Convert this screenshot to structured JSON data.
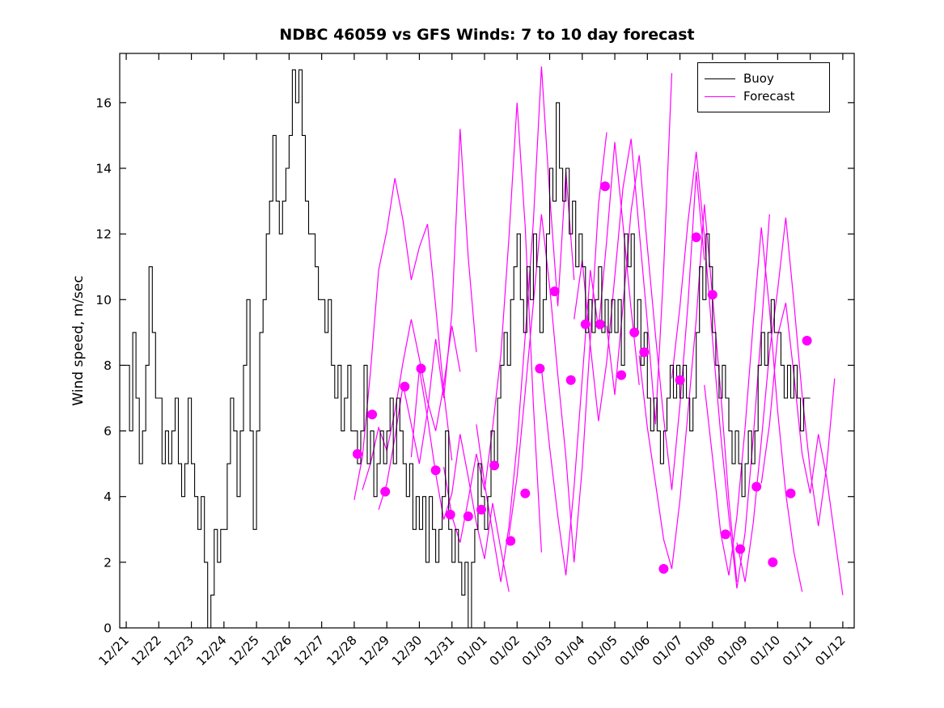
{
  "title": "NDBC 46059 vs GFS Winds: 7 to 10 day forecast",
  "legend": [
    {
      "label": "Buoy",
      "color": "#000000"
    },
    {
      "label": "Forecast",
      "color": "#ff00ff"
    }
  ],
  "colors": {
    "buoy": "#000000",
    "forecast": "#ff00ff",
    "background": "#ffffff",
    "axis": "#000000"
  },
  "chart_data": {
    "type": "line",
    "title": "NDBC 46059 vs GFS Winds: 7 to 10 day forecast",
    "xlabel": "",
    "ylabel": "Wind speed, m/sec",
    "xlim": [
      -0.2,
      22.35
    ],
    "ylim": [
      0,
      17.5
    ],
    "yticks": [
      0,
      2,
      4,
      6,
      8,
      10,
      12,
      14,
      16
    ],
    "x_tick_positions": [
      0,
      1,
      2,
      3,
      4,
      5,
      6,
      7,
      8,
      9,
      10,
      11,
      12,
      13,
      14,
      15,
      16,
      17,
      18,
      19,
      20,
      21,
      22
    ],
    "x_tick_labels": [
      "12/21",
      "12/22",
      "12/23",
      "12/24",
      "12/25",
      "12/26",
      "12/27",
      "12/28",
      "12/29",
      "12/30",
      "12/31",
      "01/01",
      "01/02",
      "01/03",
      "01/04",
      "01/05",
      "01/06",
      "01/07",
      "01/08",
      "01/09",
      "01/10",
      "01/11",
      "01/12"
    ],
    "grid": false,
    "legend_position": "top-right",
    "buoy": {
      "name": "Buoy",
      "t_start": 0,
      "dt": 0.1,
      "values": [
        8,
        6,
        9,
        7,
        5,
        6,
        8,
        11,
        9,
        7,
        7,
        5,
        6,
        5,
        6,
        7,
        5,
        4,
        5,
        7,
        5,
        4,
        3,
        4,
        2,
        0,
        1,
        3,
        2,
        3,
        3,
        5,
        7,
        6,
        4,
        6,
        8,
        10,
        6,
        3,
        6,
        9,
        10,
        12,
        13,
        15,
        13,
        12,
        13,
        14,
        15,
        17,
        16,
        17,
        15,
        13,
        12,
        12,
        11,
        10,
        10,
        9,
        10,
        8,
        7,
        8,
        6,
        7,
        8,
        6,
        6,
        5,
        6,
        8,
        5,
        6,
        4,
        5,
        6,
        5,
        6,
        7,
        5,
        7,
        6,
        5,
        4,
        5,
        3,
        4,
        3,
        4,
        2,
        4,
        3,
        2,
        3,
        4,
        6,
        3,
        2,
        3,
        2,
        1,
        2,
        0,
        2,
        3,
        5,
        4,
        3,
        4,
        6,
        5,
        7,
        8,
        9,
        8,
        10,
        11,
        12,
        10,
        9,
        11,
        10,
        12,
        11,
        9,
        10,
        12,
        14,
        13,
        16,
        14,
        13,
        14,
        12,
        13,
        11,
        12,
        11,
        9,
        10,
        9,
        10,
        11,
        9,
        10,
        9,
        10,
        9,
        10,
        8,
        12,
        11,
        12,
        9,
        10,
        8,
        9,
        7,
        6,
        7,
        6,
        5,
        6,
        7,
        8,
        7,
        8,
        7,
        8,
        7,
        6,
        7,
        9,
        11,
        10,
        12,
        11,
        9,
        8,
        7,
        8,
        7,
        6,
        5,
        6,
        5,
        4,
        5,
        6,
        5,
        6,
        8,
        9,
        8,
        9,
        10,
        9,
        9,
        8,
        7,
        8,
        7,
        8,
        7,
        6,
        7,
        7,
        7
      ]
    },
    "forecast_lines": [
      {
        "x0": 7.0,
        "dx": 0.25,
        "y": [
          3.9,
          5.2,
          7.8,
          10.9,
          12.1,
          13.7,
          12.4,
          10.6,
          11.6,
          12.3,
          9.8,
          7.2,
          5.1
        ]
      },
      {
        "x0": 7.25,
        "dx": 0.25,
        "y": [
          4.2,
          5.0,
          6.1,
          5.4,
          6.6,
          8.1,
          9.4,
          8.2,
          6.9,
          6.0,
          7.4,
          9.2,
          7.8
        ]
      },
      {
        "x0": 7.75,
        "dx": 0.25,
        "y": [
          3.6,
          4.4,
          5.8,
          7.4,
          6.2,
          5.0,
          6.6,
          8.8,
          7.0,
          9.6,
          15.2,
          11.3,
          8.4
        ]
      },
      {
        "x0": 8.75,
        "dx": 0.25,
        "y": [
          5.2,
          7.9,
          6.4,
          4.7,
          3.3,
          4.1,
          5.9,
          4.6,
          3.2,
          2.1,
          3.8,
          2.4,
          1.1
        ]
      },
      {
        "x0": 9.75,
        "dx": 0.25,
        "y": [
          4.9,
          3.4,
          2.6,
          3.9,
          5.3,
          4.2,
          6.1,
          8.3,
          11.9,
          16.0,
          12.2,
          6.8,
          2.3
        ]
      },
      {
        "x0": 10.75,
        "dx": 0.25,
        "y": [
          6.2,
          4.4,
          2.9,
          1.4,
          3.1,
          5.6,
          8.9,
          12.4,
          17.1,
          13.2,
          9.8,
          13.9,
          10.6
        ]
      },
      {
        "x0": 11.75,
        "dx": 0.25,
        "y": [
          2.8,
          4.6,
          7.2,
          9.9,
          12.6,
          10.4,
          7.7,
          5.2,
          2.0,
          4.9,
          8.8,
          12.9,
          15.1
        ]
      },
      {
        "x0": 12.75,
        "dx": 0.25,
        "y": [
          7.9,
          5.5,
          3.4,
          1.6,
          4.3,
          7.6,
          10.9,
          9.1,
          11.8,
          14.8,
          12.3,
          9.7,
          7.4
        ]
      },
      {
        "x0": 13.75,
        "dx": 0.25,
        "y": [
          9.4,
          11.2,
          8.6,
          6.3,
          8.1,
          10.7,
          13.4,
          14.9,
          12.1,
          9.3,
          6.2,
          10.9,
          16.9
        ]
      },
      {
        "x0": 14.75,
        "dx": 0.25,
        "y": [
          9.2,
          7.1,
          9.8,
          12.7,
          14.4,
          11.6,
          8.9,
          6.4,
          4.2,
          6.8,
          9.9,
          13.9,
          11.2
        ]
      },
      {
        "x0": 15.75,
        "dx": 0.25,
        "y": [
          8.3,
          6.1,
          4.4,
          2.7,
          1.8,
          3.9,
          6.6,
          9.4,
          12.9,
          10.1,
          7.2,
          3.9,
          1.4
        ]
      },
      {
        "x0": 16.75,
        "dx": 0.25,
        "y": [
          7.6,
          9.8,
          12.4,
          14.5,
          11.9,
          8.8,
          5.9,
          3.4,
          1.2,
          2.9,
          5.8,
          9.1,
          12.6
        ]
      },
      {
        "x0": 17.75,
        "dx": 0.25,
        "y": [
          7.4,
          5.2,
          2.9,
          1.6,
          3.4,
          6.1,
          9.3,
          12.2,
          9.7,
          6.6,
          4.1,
          2.3,
          1.1
        ]
      },
      {
        "x0": 18.75,
        "dx": 0.25,
        "y": [
          2.6,
          1.4,
          3.2,
          5.7,
          8.4,
          10.3,
          12.5,
          9.9,
          7.1,
          4.8,
          3.1,
          4.9,
          7.6
        ]
      },
      {
        "x0": 19.5,
        "dx": 0.25,
        "y": [
          4.4,
          6.2,
          8.9,
          9.9,
          7.7,
          5.3,
          4.1,
          5.9,
          4.6,
          2.8,
          1.0
        ]
      }
    ],
    "forecast_markers": {
      "x": [
        7.1,
        7.55,
        7.95,
        8.55,
        9.05,
        9.5,
        9.95,
        10.5,
        10.9,
        11.3,
        11.8,
        12.25,
        12.7,
        13.15,
        13.65,
        14.1,
        14.55,
        14.7,
        15.2,
        15.6,
        15.9,
        16.5,
        17.0,
        17.5,
        18.0,
        18.4,
        18.85,
        19.35,
        19.85,
        20.4,
        20.9
      ],
      "y": [
        5.3,
        6.5,
        4.15,
        7.35,
        7.9,
        4.8,
        3.45,
        3.4,
        3.6,
        4.95,
        2.65,
        4.1,
        7.9,
        10.25,
        7.55,
        9.25,
        9.25,
        13.45,
        7.7,
        9.0,
        8.4,
        1.8,
        7.55,
        11.9,
        10.15,
        2.85,
        2.4,
        4.3,
        2.0,
        4.1,
        8.75
      ]
    }
  }
}
